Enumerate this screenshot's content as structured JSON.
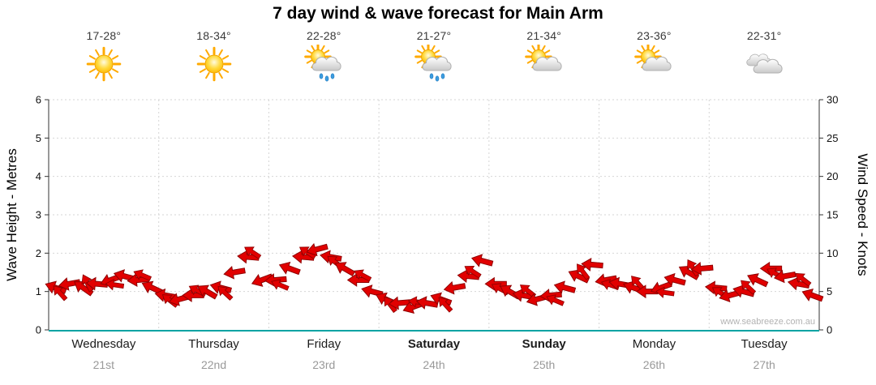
{
  "title": "7 day wind & wave forecast for Main Arm",
  "watermark": "www.seabreeze.com.au",
  "axes": {
    "left_label": "Wave Height - Metres",
    "right_label": "Wind Speed - Knots",
    "left_ticks": [
      0,
      1,
      2,
      3,
      4,
      5,
      6
    ],
    "right_ticks": [
      0,
      5,
      10,
      15,
      20,
      25,
      30
    ]
  },
  "days": [
    {
      "name": "Wednesday",
      "date": "21st",
      "temp": "17-28°",
      "icon": "sunny",
      "weekend": false
    },
    {
      "name": "Thursday",
      "date": "22nd",
      "temp": "18-34°",
      "icon": "sunny",
      "weekend": false
    },
    {
      "name": "Friday",
      "date": "23rd",
      "temp": "22-28°",
      "icon": "sun-showers",
      "weekend": false
    },
    {
      "name": "Saturday",
      "date": "24th",
      "temp": "21-27°",
      "icon": "sun-showers",
      "weekend": true
    },
    {
      "name": "Sunday",
      "date": "25th",
      "temp": "21-34°",
      "icon": "partly-cloudy",
      "weekend": true
    },
    {
      "name": "Monday",
      "date": "26th",
      "temp": "23-36°",
      "icon": "partly-cloudy",
      "weekend": false
    },
    {
      "name": "Tuesday",
      "date": "27th",
      "temp": "22-31°",
      "icon": "cloudy",
      "weekend": false
    }
  ],
  "chart_data": {
    "type": "wind-arrow-series",
    "title": "7 day wind & wave forecast for Main Arm",
    "x_categories": [
      "Wednesday 21st",
      "Thursday 22nd",
      "Friday 23rd",
      "Saturday 24th",
      "Sunday 25th",
      "Monday 26th",
      "Tuesday 27th"
    ],
    "points_per_day": 8,
    "left_axis": {
      "label": "Wave Height - Metres",
      "range": [
        0,
        6
      ]
    },
    "right_axis": {
      "label": "Wind Speed - Knots",
      "range": [
        0,
        30
      ]
    },
    "wind_knots": [
      5.5,
      6,
      5.5,
      6,
      6.5,
      7,
      6.5,
      5.5,
      4.5,
      4,
      4.5,
      5,
      5.5,
      7.5,
      9.5,
      6.5,
      6.5,
      8,
      9.5,
      10.5,
      9.5,
      8,
      6.5,
      5,
      4,
      3.5,
      3,
      3.5,
      4,
      5.5,
      7,
      9,
      6,
      5,
      4.5,
      4,
      4.5,
      5.5,
      7,
      8.5,
      6.5,
      6,
      5.5,
      5,
      5.5,
      6.5,
      7.5,
      8,
      5.5,
      4.5,
      5,
      6.5,
      8,
      7,
      6,
      4.5
    ],
    "wind_dir_deg": [
      200,
      170,
      215,
      185,
      160,
      195,
      175,
      205,
      190,
      165,
      180,
      210,
      195,
      170,
      185,
      160,
      175,
      200,
      185,
      165,
      190,
      210,
      180,
      195,
      205,
      175,
      160,
      190,
      200,
      170,
      185,
      195,
      180,
      210,
      190,
      165,
      175,
      195,
      205,
      185,
      170,
      190,
      200,
      180,
      160,
      195,
      210,
      175,
      185,
      165,
      195,
      205,
      180,
      170,
      190,
      200
    ],
    "colors": {
      "arrow_fill": "#e10000",
      "arrow_stroke": "#8f0000",
      "baseline": "#00a3a3",
      "gridline": "#d6d6d6",
      "axis_line": "#333333"
    },
    "grid": true,
    "legend": "none"
  }
}
